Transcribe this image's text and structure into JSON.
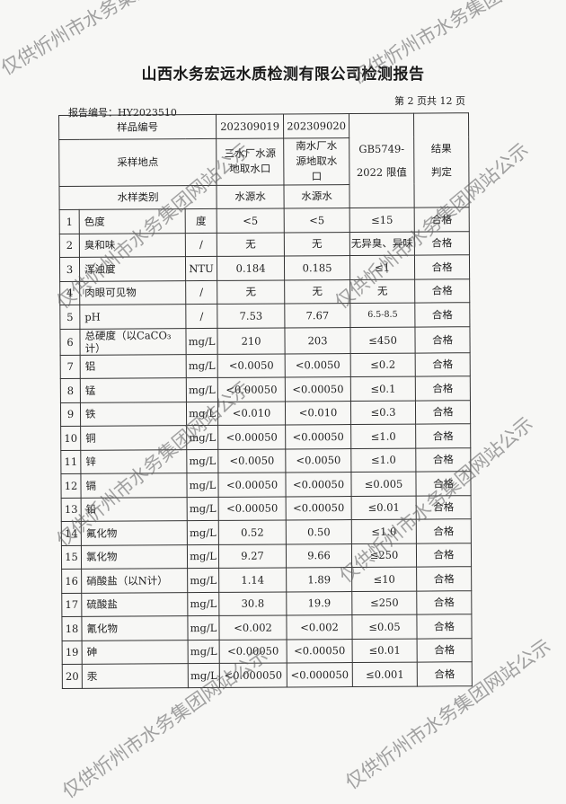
{
  "title": "山西水务宏远水质检测有限公司检测报告",
  "page_info": "第 2 页共 12 页",
  "report_no": "报告编号：HY2023510",
  "watermark": "仅供忻州市水务集团网站公示",
  "header": {
    "sample_no_label": "样品编号",
    "sample_no_1": "202309019",
    "sample_no_2": "202309020",
    "site_label": "采样地点",
    "site_1": "三水厂水源地取水口",
    "site_2": "南水厂水源地取水口",
    "type_label": "水样类别",
    "type_1": "水源水",
    "type_2": "水源水",
    "limit_label": "GB5749-2022 限值",
    "result_label": "结果判定"
  },
  "rows": [
    {
      "no": "1",
      "item": "色度",
      "unit": "度",
      "v1": "<5",
      "v2": "<5",
      "limit": "≤15",
      "result": "合格"
    },
    {
      "no": "2",
      "item": "臭和味",
      "unit": "/",
      "v1": "无",
      "v2": "无",
      "limit": "无异臭、异味",
      "result": "合格"
    },
    {
      "no": "3",
      "item": "浑浊度",
      "unit": "NTU",
      "v1": "0.184",
      "v2": "0.185",
      "limit": "≤1",
      "result": "合格"
    },
    {
      "no": "4",
      "item": "肉眼可见物",
      "unit": "/",
      "v1": "无",
      "v2": "无",
      "limit": "无",
      "result": "合格"
    },
    {
      "no": "5",
      "item": "pH",
      "unit": "/",
      "v1": "7.53",
      "v2": "7.67",
      "limit": "6.5-8.5",
      "result": "合格"
    },
    {
      "no": "6",
      "item": "总硬度（以CaCO₃计）",
      "unit": "mg/L",
      "v1": "210",
      "v2": "203",
      "limit": "≤450",
      "result": "合格"
    },
    {
      "no": "7",
      "item": "铝",
      "unit": "mg/L",
      "v1": "<0.0050",
      "v2": "<0.0050",
      "limit": "≤0.2",
      "result": "合格"
    },
    {
      "no": "8",
      "item": "锰",
      "unit": "mg/L",
      "v1": "<0.00050",
      "v2": "<0.00050",
      "limit": "≤0.1",
      "result": "合格"
    },
    {
      "no": "9",
      "item": "铁",
      "unit": "mg/L",
      "v1": "<0.010",
      "v2": "<0.010",
      "limit": "≤0.3",
      "result": "合格"
    },
    {
      "no": "10",
      "item": "铜",
      "unit": "mg/L",
      "v1": "<0.00050",
      "v2": "<0.00050",
      "limit": "≤1.0",
      "result": "合格"
    },
    {
      "no": "11",
      "item": "锌",
      "unit": "mg/L",
      "v1": "<0.0050",
      "v2": "<0.0050",
      "limit": "≤1.0",
      "result": "合格"
    },
    {
      "no": "12",
      "item": "镉",
      "unit": "mg/L",
      "v1": "<0.00050",
      "v2": "<0.00050",
      "limit": "≤0.005",
      "result": "合格"
    },
    {
      "no": "13",
      "item": "铅",
      "unit": "mg/L",
      "v1": "<0.00050",
      "v2": "<0.00050",
      "limit": "≤0.01",
      "result": "合格"
    },
    {
      "no": "14",
      "item": "氟化物",
      "unit": "mg/L",
      "v1": "0.52",
      "v2": "0.50",
      "limit": "≤1.0",
      "result": "合格"
    },
    {
      "no": "15",
      "item": "氯化物",
      "unit": "mg/L",
      "v1": "9.27",
      "v2": "9.66",
      "limit": "≤250",
      "result": "合格"
    },
    {
      "no": "16",
      "item": "硝酸盐（以N计）",
      "unit": "mg/L",
      "v1": "1.14",
      "v2": "1.89",
      "limit": "≤10",
      "result": "合格"
    },
    {
      "no": "17",
      "item": "硫酸盐",
      "unit": "mg/L",
      "v1": "30.8",
      "v2": "19.9",
      "limit": "≤250",
      "result": "合格"
    },
    {
      "no": "18",
      "item": "氰化物",
      "unit": "mg/L",
      "v1": "<0.002",
      "v2": "<0.002",
      "limit": "≤0.05",
      "result": "合格"
    },
    {
      "no": "19",
      "item": "砷",
      "unit": "mg/L",
      "v1": "<0.00050",
      "v2": "<0.00050",
      "limit": "≤0.01",
      "result": "合格"
    },
    {
      "no": "20",
      "item": "汞",
      "unit": "mg/L",
      "v1": "<0.000050",
      "v2": "<0.000050",
      "limit": "≤0.001",
      "result": "合格"
    }
  ]
}
